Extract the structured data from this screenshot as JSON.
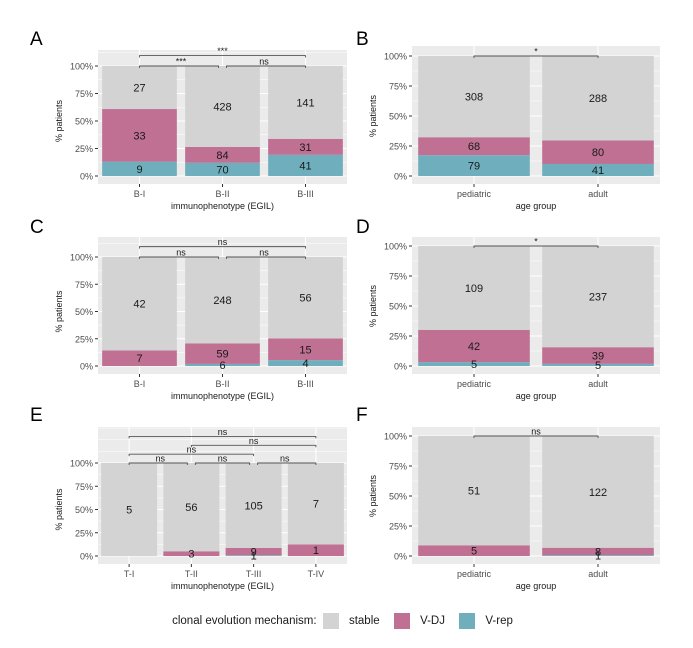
{
  "colors": {
    "stable": "#d3d3d3",
    "V-DJ": "#bf7093",
    "V-rep": "#6fafbd",
    "panel_bg": "#ebebeb",
    "grid": "#ffffff"
  },
  "legend": {
    "title": "clonal evolution mechanism:",
    "items": [
      {
        "key": "stable",
        "label": "stable"
      },
      {
        "key": "V-DJ",
        "label": "V-DJ"
      },
      {
        "key": "V-rep",
        "label": "V-rep"
      }
    ]
  },
  "chart_data": [
    {
      "panel": "A",
      "type": "bar",
      "stacked": "percent",
      "xlabel": "immunophenotype (EGIL)",
      "ylabel": "% patients",
      "yticks": [
        "0%",
        "25%",
        "50%",
        "75%",
        "100%"
      ],
      "ylim": [
        0,
        1
      ],
      "categories": [
        "B-I",
        "B-II",
        "B-III"
      ],
      "series": [
        {
          "name": "V-rep",
          "values": [
            9,
            70,
            41
          ]
        },
        {
          "name": "V-DJ",
          "values": [
            33,
            84,
            31
          ]
        },
        {
          "name": "stable",
          "values": [
            27,
            428,
            141
          ]
        }
      ],
      "comparisons": [
        {
          "from": "B-I",
          "to": "B-II",
          "label": "***",
          "level": 0
        },
        {
          "from": "B-II",
          "to": "B-III",
          "label": "ns",
          "level": 0
        },
        {
          "from": "B-I",
          "to": "B-III",
          "label": "***",
          "level": 1
        }
      ]
    },
    {
      "panel": "B",
      "type": "bar",
      "stacked": "percent",
      "xlabel": "age group",
      "ylabel": "% patients",
      "yticks": [
        "0%",
        "25%",
        "50%",
        "75%",
        "100%"
      ],
      "ylim": [
        0,
        1
      ],
      "categories": [
        "pediatric",
        "adult"
      ],
      "series": [
        {
          "name": "V-rep",
          "values": [
            79,
            41
          ]
        },
        {
          "name": "V-DJ",
          "values": [
            68,
            80
          ]
        },
        {
          "name": "stable",
          "values": [
            308,
            288
          ]
        }
      ],
      "comparisons": [
        {
          "from": "pediatric",
          "to": "adult",
          "label": "*",
          "level": 0
        }
      ]
    },
    {
      "panel": "C",
      "type": "bar",
      "stacked": "percent",
      "xlabel": "immunophenotype (EGIL)",
      "ylabel": "% patients",
      "yticks": [
        "0%",
        "25%",
        "50%",
        "75%",
        "100%"
      ],
      "ylim": [
        0,
        1
      ],
      "categories": [
        "B-I",
        "B-II",
        "B-III"
      ],
      "series": [
        {
          "name": "V-rep",
          "values": [
            0,
            6,
            4
          ]
        },
        {
          "name": "V-DJ",
          "values": [
            7,
            59,
            15
          ]
        },
        {
          "name": "stable",
          "values": [
            42,
            248,
            56
          ]
        }
      ],
      "comparisons": [
        {
          "from": "B-I",
          "to": "B-II",
          "label": "ns",
          "level": 0
        },
        {
          "from": "B-II",
          "to": "B-III",
          "label": "ns",
          "level": 0
        },
        {
          "from": "B-I",
          "to": "B-III",
          "label": "ns",
          "level": 1
        }
      ]
    },
    {
      "panel": "D",
      "type": "bar",
      "stacked": "percent",
      "xlabel": "age group",
      "ylabel": "% patients",
      "yticks": [
        "0%",
        "25%",
        "50%",
        "75%",
        "100%"
      ],
      "ylim": [
        0,
        1
      ],
      "categories": [
        "pediatric",
        "adult"
      ],
      "series": [
        {
          "name": "V-rep",
          "values": [
            5,
            5
          ]
        },
        {
          "name": "V-DJ",
          "values": [
            42,
            39
          ]
        },
        {
          "name": "stable",
          "values": [
            109,
            237
          ]
        }
      ],
      "comparisons": [
        {
          "from": "pediatric",
          "to": "adult",
          "label": "*",
          "level": 0
        }
      ]
    },
    {
      "panel": "E",
      "type": "bar",
      "stacked": "percent",
      "xlabel": "immunophenotype (EGIL)",
      "ylabel": "% patients",
      "yticks": [
        "0%",
        "25%",
        "50%",
        "75%",
        "100%"
      ],
      "ylim": [
        0,
        1
      ],
      "categories": [
        "T-I",
        "T-II",
        "T-III",
        "T-IV"
      ],
      "series": [
        {
          "name": "V-rep",
          "values": [
            0,
            0,
            1,
            0
          ]
        },
        {
          "name": "V-DJ",
          "values": [
            0,
            3,
            9,
            1
          ]
        },
        {
          "name": "stable",
          "values": [
            5,
            56,
            105,
            7
          ]
        }
      ],
      "comparisons": [
        {
          "from": "T-I",
          "to": "T-II",
          "label": "ns",
          "level": 0
        },
        {
          "from": "T-II",
          "to": "T-III",
          "label": "ns",
          "level": 0
        },
        {
          "from": "T-III",
          "to": "T-IV",
          "label": "ns",
          "level": 0
        },
        {
          "from": "T-I",
          "to": "T-III",
          "label": "ns",
          "level": 1
        },
        {
          "from": "T-II",
          "to": "T-IV",
          "label": "ns",
          "level": 2
        },
        {
          "from": "T-I",
          "to": "T-IV",
          "label": "ns",
          "level": 3
        }
      ]
    },
    {
      "panel": "F",
      "type": "bar",
      "stacked": "percent",
      "xlabel": "age group",
      "ylabel": "% patients",
      "yticks": [
        "0%",
        "25%",
        "50%",
        "75%",
        "100%"
      ],
      "ylim": [
        0,
        1
      ],
      "categories": [
        "pediatric",
        "adult"
      ],
      "series": [
        {
          "name": "V-rep",
          "values": [
            0,
            1
          ]
        },
        {
          "name": "V-DJ",
          "values": [
            5,
            8
          ]
        },
        {
          "name": "stable",
          "values": [
            51,
            122
          ]
        }
      ],
      "comparisons": [
        {
          "from": "pediatric",
          "to": "adult",
          "label": "ns",
          "level": 0
        }
      ]
    }
  ]
}
